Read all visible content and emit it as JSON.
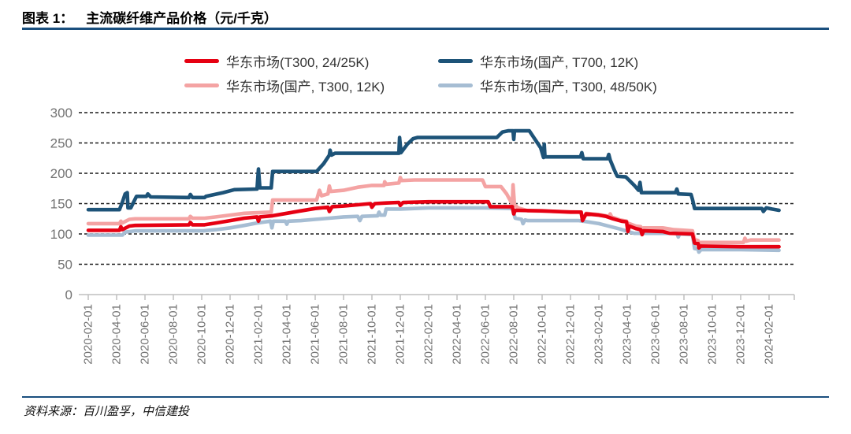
{
  "header": {
    "label": "图表 1：",
    "title": "主流碳纤维产品价格（元/千克）"
  },
  "footer": {
    "source": "资料来源：百川盈孚，中信建投"
  },
  "colors": {
    "rule_navy": "#1a4f7e",
    "grid_line": "#1a1a1a",
    "axis_line": "#bfbfbf",
    "tick_label_gray": "#737373",
    "series_red": "#e60012",
    "series_dark_blue": "#1d5378",
    "series_pink": "#f4a3a3",
    "series_light_blue": "#a6bdd3"
  },
  "chart_data": {
    "type": "line",
    "title": "主流碳纤维产品价格（元/千克）",
    "ylabel": "",
    "xlabel": "",
    "unit": "元/千克",
    "ylim": [
      0,
      300
    ],
    "yticks": [
      0,
      50,
      100,
      150,
      200,
      250,
      300
    ],
    "grid": "horizontal-dashed",
    "legend_position": "top-center",
    "x_unit": "months since 2020-02-01",
    "x_tick_step_months": 2,
    "x_tick_labels": [
      "2020-02-01",
      "2020-04-01",
      "2020-06-01",
      "2020-08-01",
      "2020-10-01",
      "2020-12-01",
      "2021-02-01",
      "2021-04-01",
      "2021-06-01",
      "2021-08-01",
      "2021-10-01",
      "2021-12-01",
      "2022-02-01",
      "2022-04-01",
      "2022-06-01",
      "2022-08-01",
      "2022-10-01",
      "2022-12-01",
      "2023-02-01",
      "2023-04-01",
      "2023-06-01",
      "2023-08-01",
      "2023-10-01",
      "2023-12-01",
      "2024-02-01"
    ],
    "draw_order": [
      2,
      3,
      1,
      0
    ],
    "series": [
      {
        "name": "华东市场(T300, 24/25K)",
        "color": "#e60012",
        "points": [
          [
            0,
            106
          ],
          [
            2.2,
            106
          ],
          [
            2.3,
            112
          ],
          [
            2.4,
            107
          ],
          [
            2.9,
            113
          ],
          [
            3.3,
            114
          ],
          [
            7.1,
            115
          ],
          [
            7.2,
            119
          ],
          [
            7.35,
            115
          ],
          [
            8.2,
            115
          ],
          [
            9,
            118
          ],
          [
            10,
            122
          ],
          [
            11,
            126
          ],
          [
            11.9,
            128
          ],
          [
            12.0,
            121
          ],
          [
            12.1,
            128
          ],
          [
            13,
            130
          ],
          [
            14,
            134
          ],
          [
            15,
            138
          ],
          [
            16,
            142
          ],
          [
            16.9,
            144
          ],
          [
            17.0,
            137
          ],
          [
            17.2,
            145
          ],
          [
            18,
            146
          ],
          [
            19,
            148
          ],
          [
            19.9,
            150
          ],
          [
            20.0,
            144
          ],
          [
            20.2,
            150
          ],
          [
            21,
            151
          ],
          [
            21.9,
            152
          ],
          [
            22.0,
            147
          ],
          [
            22.2,
            152
          ],
          [
            24,
            153
          ],
          [
            28.2,
            153
          ],
          [
            28.35,
            145
          ],
          [
            29.9,
            145
          ],
          [
            30.0,
            133
          ],
          [
            30.1,
            139
          ],
          [
            32,
            138
          ],
          [
            34,
            136
          ],
          [
            34.75,
            136
          ],
          [
            34.85,
            122
          ],
          [
            35.1,
            133
          ],
          [
            36,
            131
          ],
          [
            36.5,
            129
          ],
          [
            37,
            125
          ],
          [
            37.6,
            121
          ],
          [
            37.95,
            120
          ],
          [
            38.05,
            104
          ],
          [
            38.15,
            113
          ],
          [
            38.6,
            109
          ],
          [
            38.95,
            107
          ],
          [
            39.05,
            99
          ],
          [
            39.15,
            105
          ],
          [
            40.5,
            104
          ],
          [
            41,
            101
          ],
          [
            42.6,
            100
          ],
          [
            42.75,
            85
          ],
          [
            43.0,
            84
          ],
          [
            43.05,
            77
          ],
          [
            43.2,
            80
          ],
          [
            46,
            79
          ],
          [
            48.7,
            79
          ]
        ]
      },
      {
        "name": "华东市场(国产, T700, 12K)",
        "color": "#1d5378",
        "points": [
          [
            0,
            140
          ],
          [
            2.2,
            140
          ],
          [
            2.4,
            152
          ],
          [
            2.6,
            166
          ],
          [
            2.75,
            168
          ],
          [
            2.8,
            143
          ],
          [
            3.0,
            143
          ],
          [
            3.4,
            162
          ],
          [
            4.1,
            162
          ],
          [
            4.2,
            166
          ],
          [
            4.4,
            161
          ],
          [
            7.1,
            160
          ],
          [
            7.2,
            165
          ],
          [
            7.35,
            160
          ],
          [
            8.2,
            160
          ],
          [
            8.3,
            162
          ],
          [
            9.5,
            168
          ],
          [
            10.3,
            173
          ],
          [
            11.9,
            174
          ],
          [
            12.0,
            207
          ],
          [
            12.1,
            176
          ],
          [
            12.9,
            176
          ],
          [
            13.0,
            203
          ],
          [
            16.1,
            203
          ],
          [
            16.6,
            216
          ],
          [
            17.0,
            230
          ],
          [
            17.05,
            238
          ],
          [
            17.15,
            230
          ],
          [
            17.4,
            233
          ],
          [
            21.9,
            233
          ],
          [
            21.95,
            259
          ],
          [
            22.05,
            234
          ],
          [
            22.5,
            248
          ],
          [
            22.9,
            257
          ],
          [
            23.2,
            259
          ],
          [
            28.8,
            259
          ],
          [
            29.2,
            268
          ],
          [
            29.6,
            270
          ],
          [
            29.95,
            270
          ],
          [
            30.0,
            256
          ],
          [
            30.05,
            270
          ],
          [
            31.1,
            270
          ],
          [
            31.9,
            242
          ],
          [
            32.1,
            226
          ],
          [
            32.15,
            248
          ],
          [
            32.2,
            227
          ],
          [
            34.7,
            227
          ],
          [
            34.8,
            234
          ],
          [
            34.9,
            224
          ],
          [
            36.6,
            224
          ],
          [
            36.7,
            231
          ],
          [
            36.8,
            222
          ],
          [
            37.1,
            205
          ],
          [
            37.3,
            195
          ],
          [
            37.9,
            194
          ],
          [
            38.5,
            180
          ],
          [
            38.8,
            172
          ],
          [
            38.9,
            185
          ],
          [
            39.0,
            168
          ],
          [
            41.4,
            168
          ],
          [
            41.5,
            174
          ],
          [
            41.6,
            166
          ],
          [
            42.5,
            165
          ],
          [
            42.6,
            157
          ],
          [
            42.75,
            142
          ],
          [
            47.5,
            142
          ],
          [
            47.6,
            137
          ],
          [
            47.8,
            143
          ],
          [
            48.2,
            141
          ],
          [
            48.7,
            139
          ]
        ]
      },
      {
        "name": "华东市场(国产, T300, 12K)",
        "color": "#f4a3a3",
        "points": [
          [
            0,
            117
          ],
          [
            2.2,
            117
          ],
          [
            2.3,
            121
          ],
          [
            2.4,
            118
          ],
          [
            2.9,
            124
          ],
          [
            3.3,
            125
          ],
          [
            7.1,
            125
          ],
          [
            7.2,
            129
          ],
          [
            7.35,
            126
          ],
          [
            8.2,
            126
          ],
          [
            9,
            128
          ],
          [
            10,
            131
          ],
          [
            11,
            134
          ],
          [
            12.9,
            136
          ],
          [
            13.0,
            156
          ],
          [
            16.1,
            156
          ],
          [
            16.3,
            172
          ],
          [
            16.45,
            163
          ],
          [
            16.9,
            166
          ],
          [
            17.0,
            179
          ],
          [
            17.1,
            170
          ],
          [
            18,
            172
          ],
          [
            19,
            177
          ],
          [
            20,
            180
          ],
          [
            20.85,
            180
          ],
          [
            20.9,
            186
          ],
          [
            21.0,
            182
          ],
          [
            21.9,
            184
          ],
          [
            22.0,
            193
          ],
          [
            22.1,
            188
          ],
          [
            23,
            189
          ],
          [
            27.8,
            189
          ],
          [
            28.0,
            178
          ],
          [
            29.1,
            178
          ],
          [
            29.5,
            166
          ],
          [
            29.9,
            149
          ],
          [
            29.95,
            181
          ],
          [
            30.05,
            148
          ],
          [
            30.3,
            143
          ],
          [
            31,
            138
          ],
          [
            33,
            137
          ],
          [
            34.75,
            136
          ],
          [
            34.85,
            123
          ],
          [
            35.1,
            134
          ],
          [
            36,
            132
          ],
          [
            36.7,
            129
          ],
          [
            36.8,
            133
          ],
          [
            36.9,
            128
          ],
          [
            37.5,
            123
          ],
          [
            37.95,
            121
          ],
          [
            38.05,
            112
          ],
          [
            38.15,
            117
          ],
          [
            38.6,
            113
          ],
          [
            38.95,
            112
          ],
          [
            39.05,
            104
          ],
          [
            39.15,
            110
          ],
          [
            40.5,
            110
          ],
          [
            41.3,
            107
          ],
          [
            42.6,
            105
          ],
          [
            42.75,
            91
          ],
          [
            43.0,
            89
          ],
          [
            43.05,
            82
          ],
          [
            43.2,
            86
          ],
          [
            46.2,
            86
          ],
          [
            46.3,
            93
          ],
          [
            46.4,
            88
          ],
          [
            46.7,
            90
          ],
          [
            48.7,
            90
          ]
        ]
      },
      {
        "name": "华东市场(国产, T300, 48/50K)",
        "color": "#a6bdd3",
        "points": [
          [
            0,
            98
          ],
          [
            2.4,
            98
          ],
          [
            2.6,
            103
          ],
          [
            3.3,
            105
          ],
          [
            8.1,
            105
          ],
          [
            9,
            107
          ],
          [
            10,
            110
          ],
          [
            11,
            114
          ],
          [
            11.9,
            118
          ],
          [
            12.85,
            121
          ],
          [
            12.95,
            110
          ],
          [
            13.05,
            121
          ],
          [
            13.9,
            121
          ],
          [
            14.0,
            116
          ],
          [
            14.1,
            121
          ],
          [
            15,
            122
          ],
          [
            16,
            124
          ],
          [
            17,
            126
          ],
          [
            18,
            128
          ],
          [
            19,
            129
          ],
          [
            19.15,
            122
          ],
          [
            19.3,
            129
          ],
          [
            20.4,
            130
          ],
          [
            20.5,
            136
          ],
          [
            20.6,
            131
          ],
          [
            20.9,
            131
          ],
          [
            21.0,
            141
          ],
          [
            22,
            141
          ],
          [
            23,
            142
          ],
          [
            24,
            143
          ],
          [
            28,
            143
          ],
          [
            29.9,
            142
          ],
          [
            30.1,
            126
          ],
          [
            30.55,
            124
          ],
          [
            30.65,
            117
          ],
          [
            30.8,
            123
          ],
          [
            31,
            122
          ],
          [
            34.6,
            122
          ],
          [
            35.2,
            120
          ],
          [
            36,
            117
          ],
          [
            36.5,
            114
          ],
          [
            37.5,
            108
          ],
          [
            38.2,
            103
          ],
          [
            38.5,
            101
          ],
          [
            41.5,
            101
          ],
          [
            41.6,
            95
          ],
          [
            41.7,
            100
          ],
          [
            42.6,
            99
          ],
          [
            42.75,
            76
          ],
          [
            43.0,
            75
          ],
          [
            43.05,
            70
          ],
          [
            43.2,
            74
          ],
          [
            46,
            74
          ],
          [
            48.7,
            73
          ]
        ]
      }
    ]
  }
}
